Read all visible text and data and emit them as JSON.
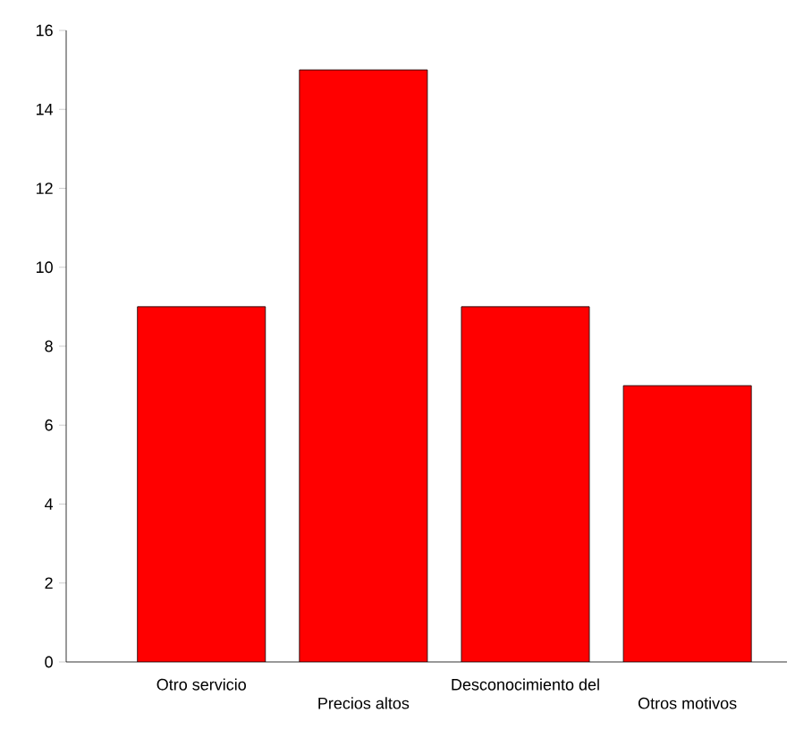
{
  "chart_data": {
    "type": "bar",
    "categories": [
      "Otro servicio",
      "Precios altos",
      "Desconocimiento del",
      "Otros motivos"
    ],
    "values": [
      9,
      15,
      9,
      7
    ],
    "color": "#ff0000",
    "ylim": [
      0,
      16
    ],
    "yticks": [
      0,
      2,
      4,
      6,
      8,
      10,
      12,
      14,
      16
    ],
    "grid": false
  }
}
